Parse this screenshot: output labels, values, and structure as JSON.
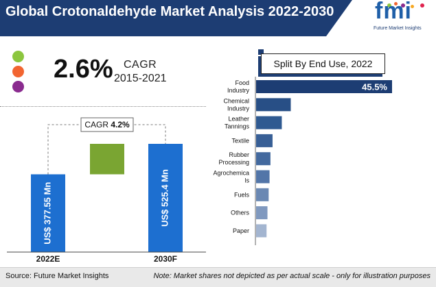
{
  "title": "Global Crotonaldehyde Market Analysis 2022-2030",
  "logo": {
    "mark": "fmi",
    "tagline": "Future Market Insights"
  },
  "cagr": {
    "value": "2.6%",
    "label": "CAGR",
    "period": "2015-2021"
  },
  "colors": {
    "header": "#1d3d73",
    "bar_2022": "#1d6fd0",
    "bar_growth": "#7aa532",
    "bullet_1": "#8cc63f",
    "bullet_2": "#f26531",
    "bullet_3": "#8a2b8f"
  },
  "split_title": "Split By End Use, 2022",
  "footer": {
    "source": "Source: Future Market Insights",
    "note": "Note: Market shares not depicted as per actual scale - only for illustration purposes"
  },
  "chart_data": [
    {
      "type": "bar",
      "categories": [
        "2022E",
        "2030F"
      ],
      "values": [
        377.55,
        525.4
      ],
      "value_labels": [
        "US$ 377.55 Mn",
        "US$ 525.4 Mn"
      ],
      "annotation": {
        "prefix": "CAGR",
        "value": "4.2%"
      }
    },
    {
      "type": "bar",
      "orientation": "horizontal",
      "title": "Split By End Use, 2022",
      "categories": [
        "Food Industry",
        "Chemical Industry",
        "Leather Tannings",
        "Textile",
        "Rubber Processing",
        "Agrochemicals",
        "Fuels",
        "Others",
        "Paper"
      ],
      "category_labels": [
        [
          "Food",
          "Industry"
        ],
        [
          "Chemical",
          "Industry"
        ],
        [
          "Leather",
          "Tannings"
        ],
        [
          "Textile"
        ],
        [
          "Rubber",
          "Processing"
        ],
        [
          "Agrochemica",
          "ls"
        ],
        [
          "Fuels"
        ],
        [
          "Others"
        ],
        [
          "Paper"
        ]
      ],
      "values": [
        45.5,
        11.6,
        8.6,
        5.5,
        4.8,
        4.5,
        4.2,
        3.8,
        3.5
      ],
      "value_labels": [
        "45.5%",
        "",
        "",
        "",
        "",
        "",
        "",
        "",
        ""
      ],
      "colors": [
        "#1d3d73",
        "#284f86",
        "#2f5a91",
        "#385f96",
        "#43699e",
        "#5275a8",
        "#6a88b3",
        "#8099bf",
        "#a3b5d0"
      ]
    }
  ]
}
